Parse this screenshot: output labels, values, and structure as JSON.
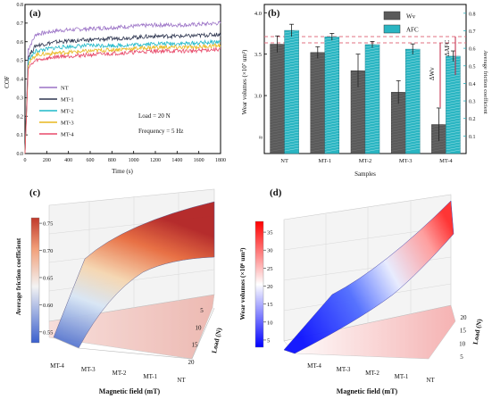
{
  "chart_data": [
    {
      "panel": "(a)",
      "type": "line",
      "xlabel": "Time (s)",
      "ylabel": "COF",
      "xlim": [
        0,
        1800
      ],
      "ylim": [
        0.0,
        0.8
      ],
      "xticks": [
        "0",
        "200",
        "400",
        "600",
        "800",
        "1000",
        "1200",
        "1400",
        "1600",
        "1800"
      ],
      "yticks": [
        "0.0",
        "0.1",
        "0.2",
        "0.3",
        "0.4",
        "0.5",
        "0.6",
        "0.7",
        "0.8"
      ],
      "annotations": [
        "Load = 20 N",
        "Frequency = 5 Hz"
      ],
      "legend_position": "left-middle",
      "series": [
        {
          "name": "NT",
          "color": "#9b72c6",
          "x": [
            0,
            30,
            100,
            300,
            600,
            900,
            1200,
            1500,
            1800
          ],
          "y": [
            0.0,
            0.56,
            0.64,
            0.66,
            0.67,
            0.68,
            0.69,
            0.69,
            0.7
          ]
        },
        {
          "name": "MT-1",
          "color": "#2e3650",
          "x": [
            0,
            30,
            100,
            300,
            600,
            900,
            1200,
            1500,
            1800
          ],
          "y": [
            0.0,
            0.52,
            0.58,
            0.6,
            0.61,
            0.62,
            0.63,
            0.63,
            0.64
          ]
        },
        {
          "name": "MT-2",
          "color": "#1fb8c8",
          "x": [
            0,
            30,
            100,
            300,
            600,
            900,
            1200,
            1500,
            1800
          ],
          "y": [
            0.0,
            0.5,
            0.55,
            0.57,
            0.58,
            0.58,
            0.59,
            0.59,
            0.6
          ]
        },
        {
          "name": "MT-3",
          "color": "#e8b71e",
          "x": [
            0,
            30,
            100,
            300,
            600,
            900,
            1200,
            1500,
            1800
          ],
          "y": [
            0.0,
            0.48,
            0.53,
            0.54,
            0.55,
            0.56,
            0.57,
            0.57,
            0.58
          ]
        },
        {
          "name": "MT-4",
          "color": "#e84a6a",
          "x": [
            0,
            30,
            100,
            300,
            600,
            900,
            1200,
            1500,
            1800
          ],
          "y": [
            0.0,
            0.46,
            0.5,
            0.52,
            0.53,
            0.54,
            0.55,
            0.55,
            0.56
          ]
        }
      ]
    },
    {
      "panel": "(b)",
      "type": "bar",
      "xlabel": "Samples",
      "ylabel": "Wear volumes (×10⁷ um³)",
      "y2label": "Average friction coefficient",
      "categories": [
        "NT",
        "MT-1",
        "MT-2",
        "MT-3",
        "MT-4"
      ],
      "yticks_left": [
        "3.0",
        "3.5",
        "4.0"
      ],
      "ylim_left": [
        2.3,
        4.1
      ],
      "yticks_right": [
        "0.1",
        "0.2",
        "0.3",
        "0.4",
        "0.5",
        "0.6",
        "0.7",
        "0.8"
      ],
      "ylim_right": [
        0.0,
        0.85
      ],
      "legend_position": "top-right",
      "annotations": [
        "ΔWv",
        "ΔAFC"
      ],
      "series": [
        {
          "name": "Wv",
          "axis": "left",
          "color": "#5a5a5a",
          "values": [
            3.62,
            3.52,
            3.3,
            3.04,
            2.65
          ],
          "errors": [
            0.1,
            0.07,
            0.2,
            0.14,
            0.2
          ]
        },
        {
          "name": "AFC",
          "axis": "right",
          "color": "#2ab5c2",
          "values": [
            0.702,
            0.665,
            0.621,
            0.595,
            0.555
          ],
          "errors": [
            0.035,
            0.02,
            0.018,
            0.03,
            0.03
          ]
        }
      ]
    },
    {
      "panel": "(c)",
      "type": "surface",
      "xlabel": "Magnetic field (mT)",
      "ylabel": "Load (N)",
      "zlabel": "Average friction coefficient",
      "x_categories": [
        "MT-4",
        "MT-3",
        "MT-2",
        "MT-1",
        "NT"
      ],
      "y_ticks": [
        "5",
        "10",
        "15",
        "20"
      ],
      "z_ticks": [
        "0.55",
        "0.60",
        "0.65",
        "0.70",
        "0.75"
      ],
      "zlim": [
        0.53,
        0.76
      ],
      "colorscale": [
        "#3a5fcd",
        "#ffffff",
        "#c0392b"
      ]
    },
    {
      "panel": "(d)",
      "type": "surface",
      "xlabel": "Magnetic field (mT)",
      "ylabel": "Load (N)",
      "zlabel": "Wear volumes (×10⁶ um³)",
      "x_categories": [
        "MT-4",
        "MT-3",
        "MT-2",
        "MT-1",
        "NT"
      ],
      "y_ticks": [
        "5",
        "10",
        "15",
        "20"
      ],
      "z_ticks": [
        "5",
        "10",
        "15",
        "20",
        "25",
        "30",
        "35"
      ],
      "zlim": [
        3,
        38
      ],
      "colorscale": [
        "#0000ff",
        "#ffffff",
        "#ff0000"
      ]
    }
  ]
}
